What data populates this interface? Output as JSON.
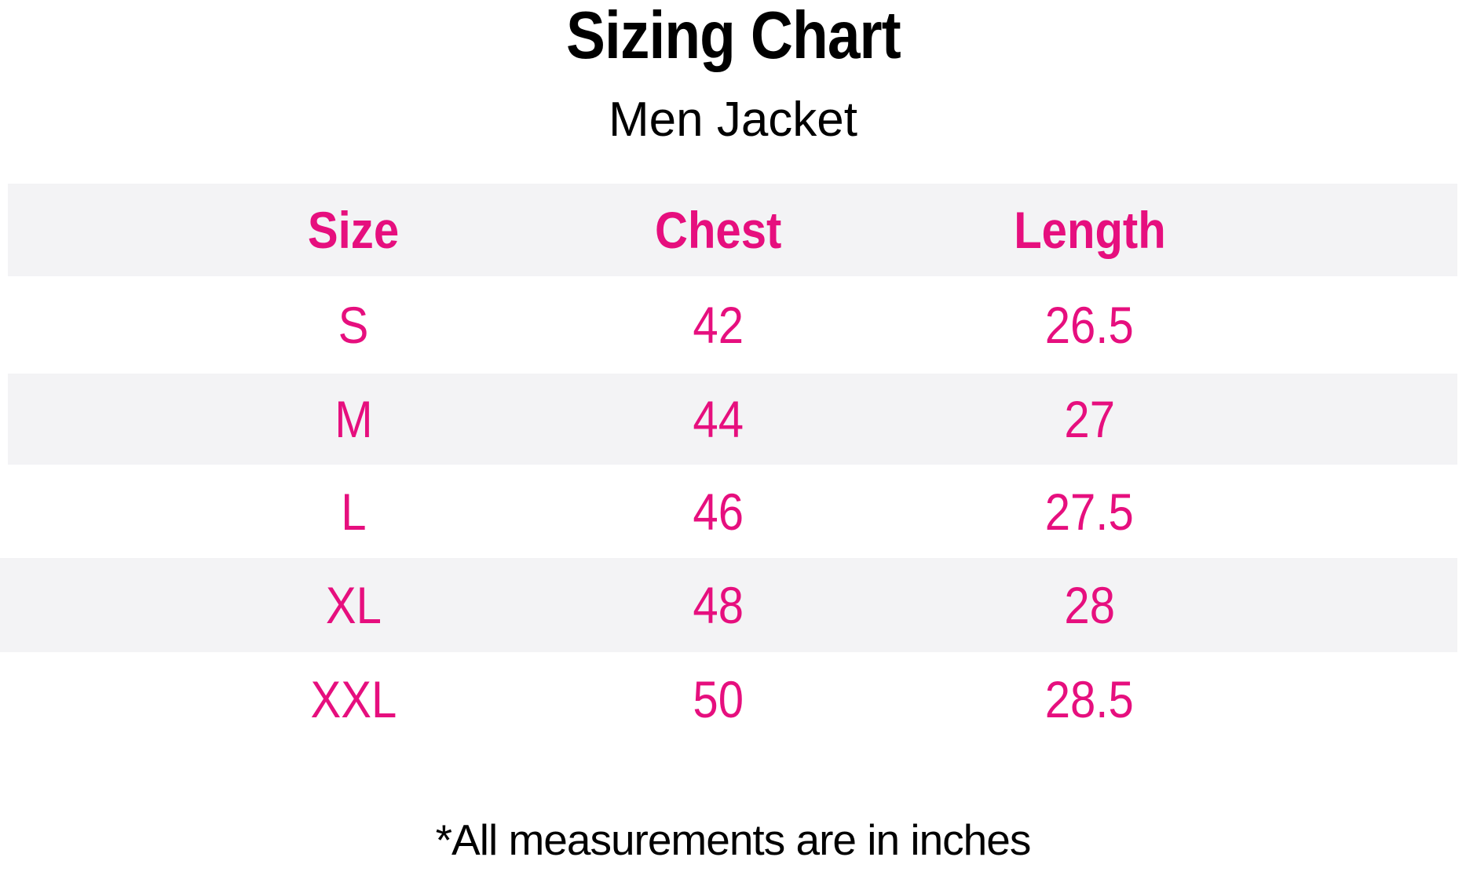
{
  "page": {
    "title": "Sizing Chart",
    "subtitle": "Men Jacket",
    "footnote": "*All measurements are in inches"
  },
  "colors": {
    "accent": "#E60F7E",
    "stripe": "#F3F3F5",
    "ink": "#000000",
    "bg": "#FFFFFF"
  },
  "chart_data": {
    "type": "table",
    "title": "Sizing Chart",
    "subtitle": "Men Jacket",
    "units": "inches",
    "columns": [
      "Size",
      "Chest",
      "Length"
    ],
    "rows": [
      [
        "S",
        "42",
        "26.5"
      ],
      [
        "M",
        "44",
        "27"
      ],
      [
        "L",
        "46",
        "27.5"
      ],
      [
        "XL",
        "48",
        "28"
      ],
      [
        "XXL",
        "50",
        "28.5"
      ]
    ],
    "footnote": "*All measurements are in inches",
    "layout": {
      "striped_rows": [
        "header",
        "M",
        "XL"
      ],
      "column_alignment": "center",
      "grid": false
    }
  }
}
